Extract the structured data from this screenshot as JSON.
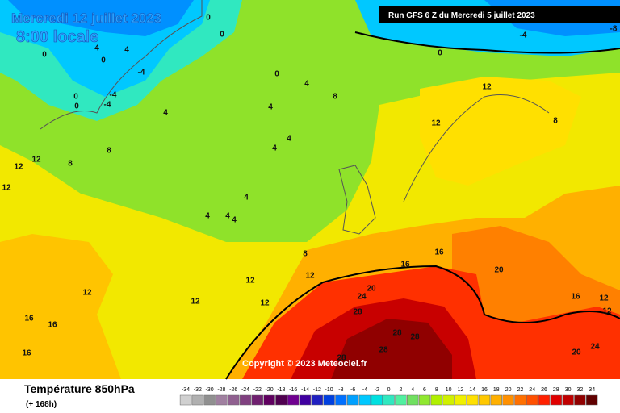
{
  "header": {
    "date": "Mercredi 12 juillet 2023",
    "time": "8:00 locale",
    "run": "Run GFS 6 Z du Mercredi 5 juillet 2023"
  },
  "map": {
    "contour_labels": [
      0,
      0,
      4,
      4,
      0,
      0,
      -4,
      0,
      -4,
      -4,
      0,
      0,
      4,
      8,
      4,
      4,
      4,
      4,
      8,
      12,
      12,
      8,
      12,
      4,
      4,
      4,
      4,
      8,
      12,
      12,
      8,
      0,
      -4,
      -8,
      16,
      16,
      20,
      20,
      24,
      28,
      12,
      12,
      12,
      12,
      12,
      16,
      16,
      16,
      28,
      28,
      28,
      28,
      16,
      12,
      12,
      24,
      20
    ]
  },
  "copyright": "Copyright © 2023 Meteociel.fr",
  "footer": {
    "title": "Température 850hPa",
    "lead": "(+ 168h)"
  },
  "legend": {
    "ticks": [
      -34,
      -32,
      -30,
      -28,
      -26,
      -24,
      -22,
      -20,
      -18,
      -16,
      -14,
      -12,
      -10,
      -8,
      -6,
      -4,
      -2,
      0,
      2,
      4,
      6,
      8,
      10,
      12,
      14,
      16,
      18,
      20,
      22,
      24,
      26,
      28,
      30,
      32,
      34
    ],
    "colors": [
      "#d0d0d0",
      "#b0b0b0",
      "#909090",
      "#a080a0",
      "#906090",
      "#804080",
      "#702070",
      "#600060",
      "#500050",
      "#700090",
      "#4000a0",
      "#2020c0",
      "#0040e0",
      "#0070ff",
      "#00a0ff",
      "#00c8ff",
      "#00e0e0",
      "#30e8c0",
      "#50f0a0",
      "#70e060",
      "#90e830",
      "#b0f000",
      "#d0f000",
      "#f0f000",
      "#ffe000",
      "#ffc800",
      "#ffb000",
      "#ff9000",
      "#ff7000",
      "#ff5000",
      "#ff2000",
      "#e00000",
      "#c00000",
      "#900000",
      "#600000"
    ]
  }
}
